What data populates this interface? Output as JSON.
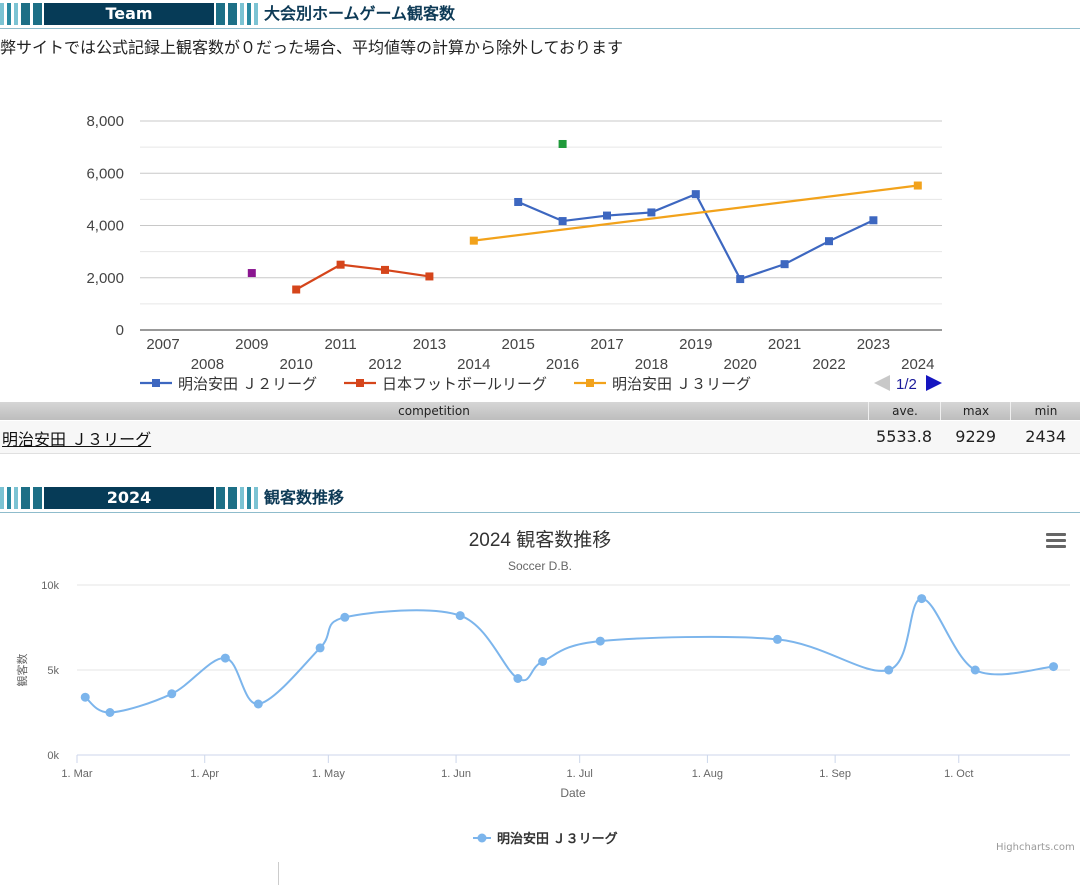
{
  "section1": {
    "pill": "Team",
    "title": "大会別ホームゲーム観客数"
  },
  "note": "弊サイトでは公式記録上観客数が０だった場合、平均値等の計算から除外しております",
  "chart1": {
    "type": "line",
    "y_ticks": [
      "0",
      "2,000",
      "4,000",
      "6,000",
      "8,000"
    ],
    "ylim": [
      0,
      8000
    ],
    "x_ticks": [
      "2007",
      "2008",
      "2009",
      "2010",
      "2011",
      "2012",
      "2013",
      "2014",
      "2015",
      "2016",
      "2017",
      "2018",
      "2019",
      "2020",
      "2021",
      "2022",
      "2023",
      "2024"
    ],
    "pager": "1/2",
    "colors": {
      "j2": "#3d67c0",
      "jfl": "#d5451b",
      "j3": "#f2a21b",
      "green": "#1f9a3a",
      "purple": "#8a1690"
    }
  },
  "chart_data": [
    {
      "type": "line",
      "title": "",
      "xlabel": "",
      "ylabel": "",
      "ylim": [
        0,
        8000
      ],
      "series": [
        {
          "name": "明治安田 Ｊ２リーグ",
          "x": [
            2015,
            2016,
            2017,
            2018,
            2019,
            2020,
            2021,
            2022,
            2023
          ],
          "values": [
            4900,
            4170,
            4380,
            4500,
            5200,
            1950,
            2520,
            3400,
            4200
          ]
        },
        {
          "name": "日本フットボールリーグ",
          "x": [
            2010,
            2011,
            2012,
            2013
          ],
          "values": [
            1550,
            2500,
            2300,
            2050
          ]
        },
        {
          "name": "明治安田 Ｊ３リーグ",
          "x": [
            2014,
            2024
          ],
          "values": [
            3420,
            5530
          ]
        },
        {
          "x": [
            2016
          ],
          "values": [
            7120
          ]
        },
        {
          "x": [
            2009
          ],
          "values": [
            2180
          ]
        }
      ]
    },
    {
      "type": "line",
      "title": "2024 観客数推移",
      "subtitle": "Soccer D.B.",
      "xlabel": "Date",
      "ylabel": "観客数",
      "ylim": [
        0,
        10000
      ],
      "x_ticks": [
        "1. Mar",
        "1. Apr",
        "1. May",
        "1. Jun",
        "1. Jul",
        "1. Aug",
        "1. Sep",
        "1. Oct"
      ],
      "y_ticks": [
        "0k",
        "5k",
        "10k"
      ],
      "series": [
        {
          "name": "明治安田 Ｊ３リーグ",
          "x": [
            "2024-03-03",
            "2024-03-09",
            "2024-03-24",
            "2024-04-06",
            "2024-04-14",
            "2024-04-29",
            "2024-05-05",
            "2024-06-02",
            "2024-06-16",
            "2024-06-22",
            "2024-07-06",
            "2024-08-18",
            "2024-09-14",
            "2024-09-22",
            "2024-10-05",
            "2024-10-24"
          ],
          "values": [
            3400,
            2500,
            3600,
            5700,
            3000,
            6300,
            8100,
            8200,
            4500,
            5500,
            6700,
            6800,
            5000,
            9200,
            5000,
            5200
          ]
        }
      ]
    }
  ],
  "table": {
    "headers": {
      "competition": "competition",
      "ave": "ave.",
      "max": "max",
      "min": "min"
    },
    "row": {
      "competition": "明治安田 Ｊ３リーグ",
      "ave": "5533.8",
      "max": "9229",
      "min": "2434"
    }
  },
  "section2": {
    "pill": "2024",
    "title": "観客数推移"
  },
  "chart2": {
    "color": "#7cb5ec",
    "credit": "Highcharts.com"
  }
}
